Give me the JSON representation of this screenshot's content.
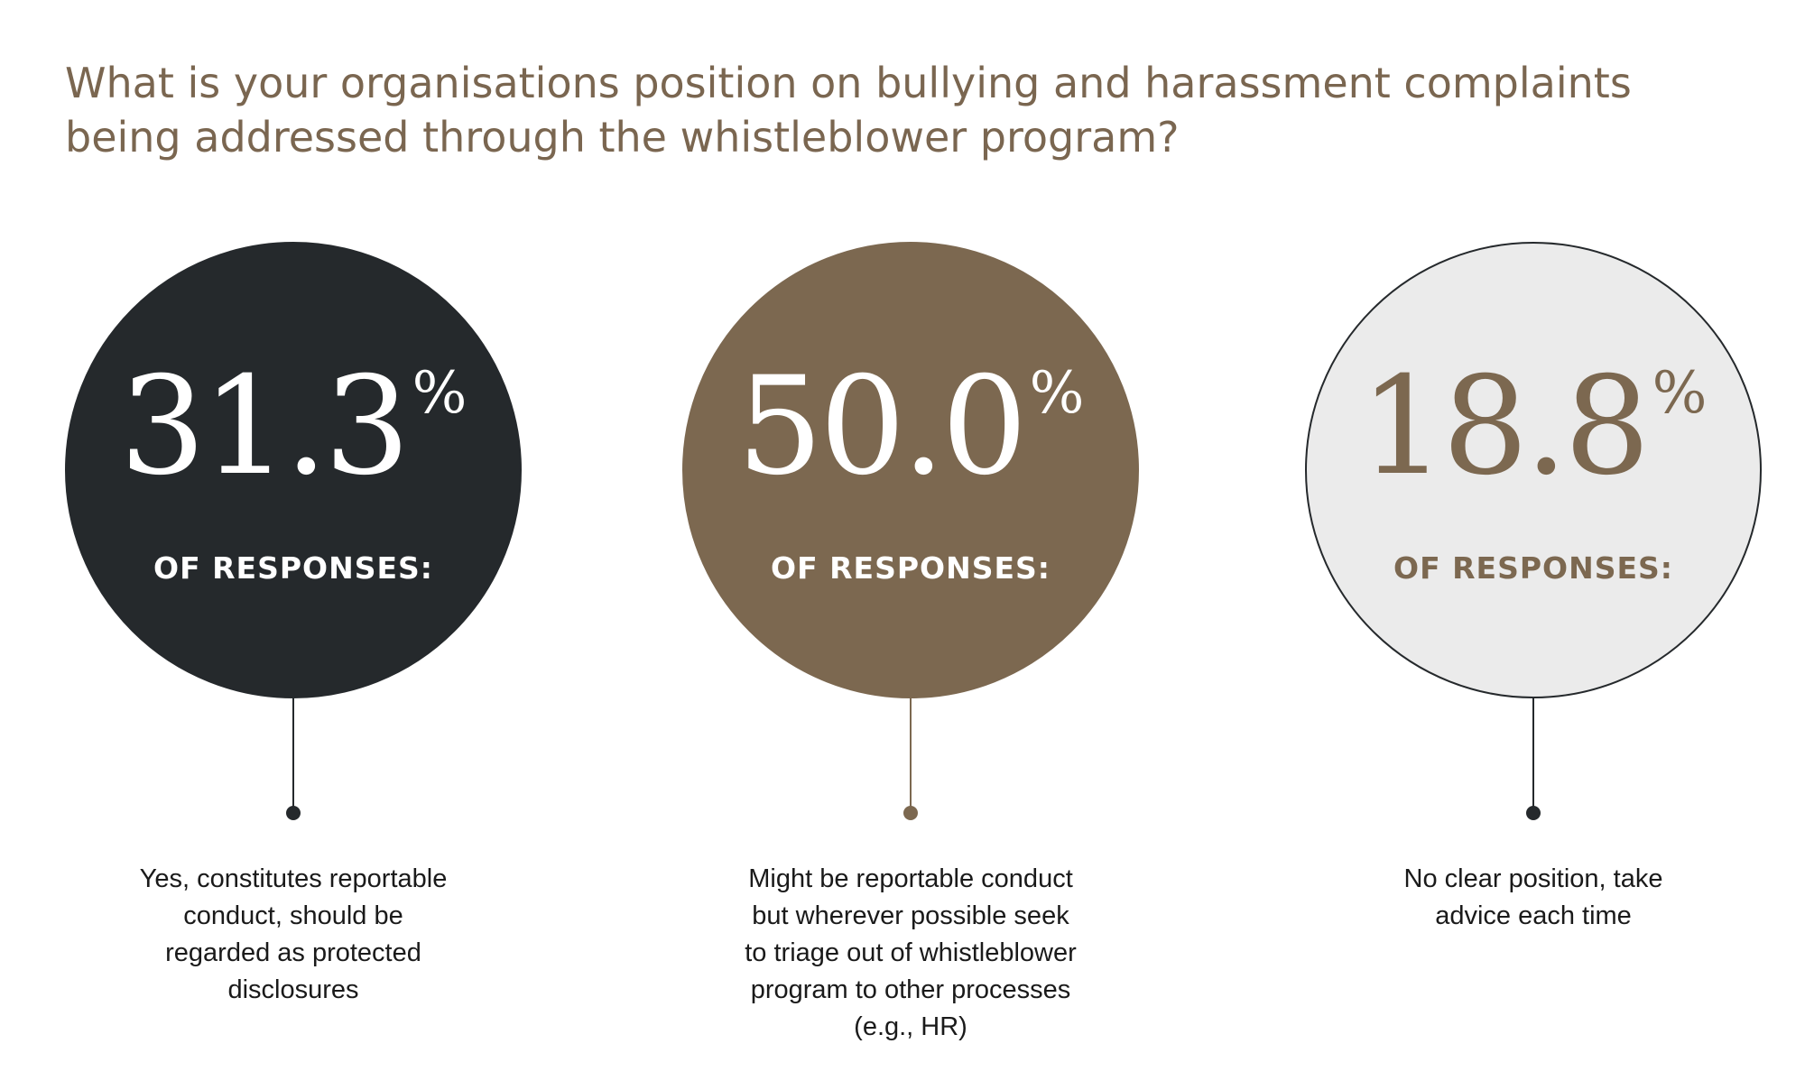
{
  "title": {
    "line1": "What is your organisations position on bullying and harassment complaints",
    "line2": "being addressed through the whistleblower program?"
  },
  "chart_data": {
    "type": "pie",
    "title": "What is your organisations position on bullying and harassment complaints being addressed through the whistleblower program?",
    "unit": "%",
    "categories": [
      "Yes, constitutes reportable conduct, should be regarded as protected disclosures",
      "Might be reportable conduct but wherever possible seek to triage out of whistleblower program to other processes (e.g., HR)",
      "No clear position, take advice each time"
    ],
    "values": [
      31.3,
      50.0,
      18.8
    ]
  },
  "stats": [
    {
      "value": "31.3",
      "sign": "%",
      "caption": "OF RESPONSES:",
      "desc_lines": [
        "Yes, constitutes reportable",
        "conduct, should be",
        "regarded as protected",
        "disclosures"
      ],
      "colors": {
        "circle": "#25292c",
        "border": "#25292c",
        "text": "#ffffff",
        "caption": "#ffffff",
        "stem": "#25292c"
      }
    },
    {
      "value": "50.0",
      "sign": "%",
      "caption": "OF RESPONSES:",
      "desc_lines": [
        "Might be reportable conduct",
        "but wherever possible seek",
        "to triage out of whistleblower",
        "program to other processes",
        "(e.g., HR)"
      ],
      "colors": {
        "circle": "#7c6850",
        "border": "#7c6850",
        "text": "#ffffff",
        "caption": "#ffffff",
        "stem": "#7c6850"
      }
    },
    {
      "value": "18.8",
      "sign": "%",
      "caption": "OF RESPONSES:",
      "desc_lines": [
        "No clear position, take",
        "advice each time"
      ],
      "colors": {
        "circle": "#ebebeb",
        "border": "#25292c",
        "text": "#7c6850",
        "caption": "#7c6850",
        "stem": "#25292c"
      }
    }
  ]
}
